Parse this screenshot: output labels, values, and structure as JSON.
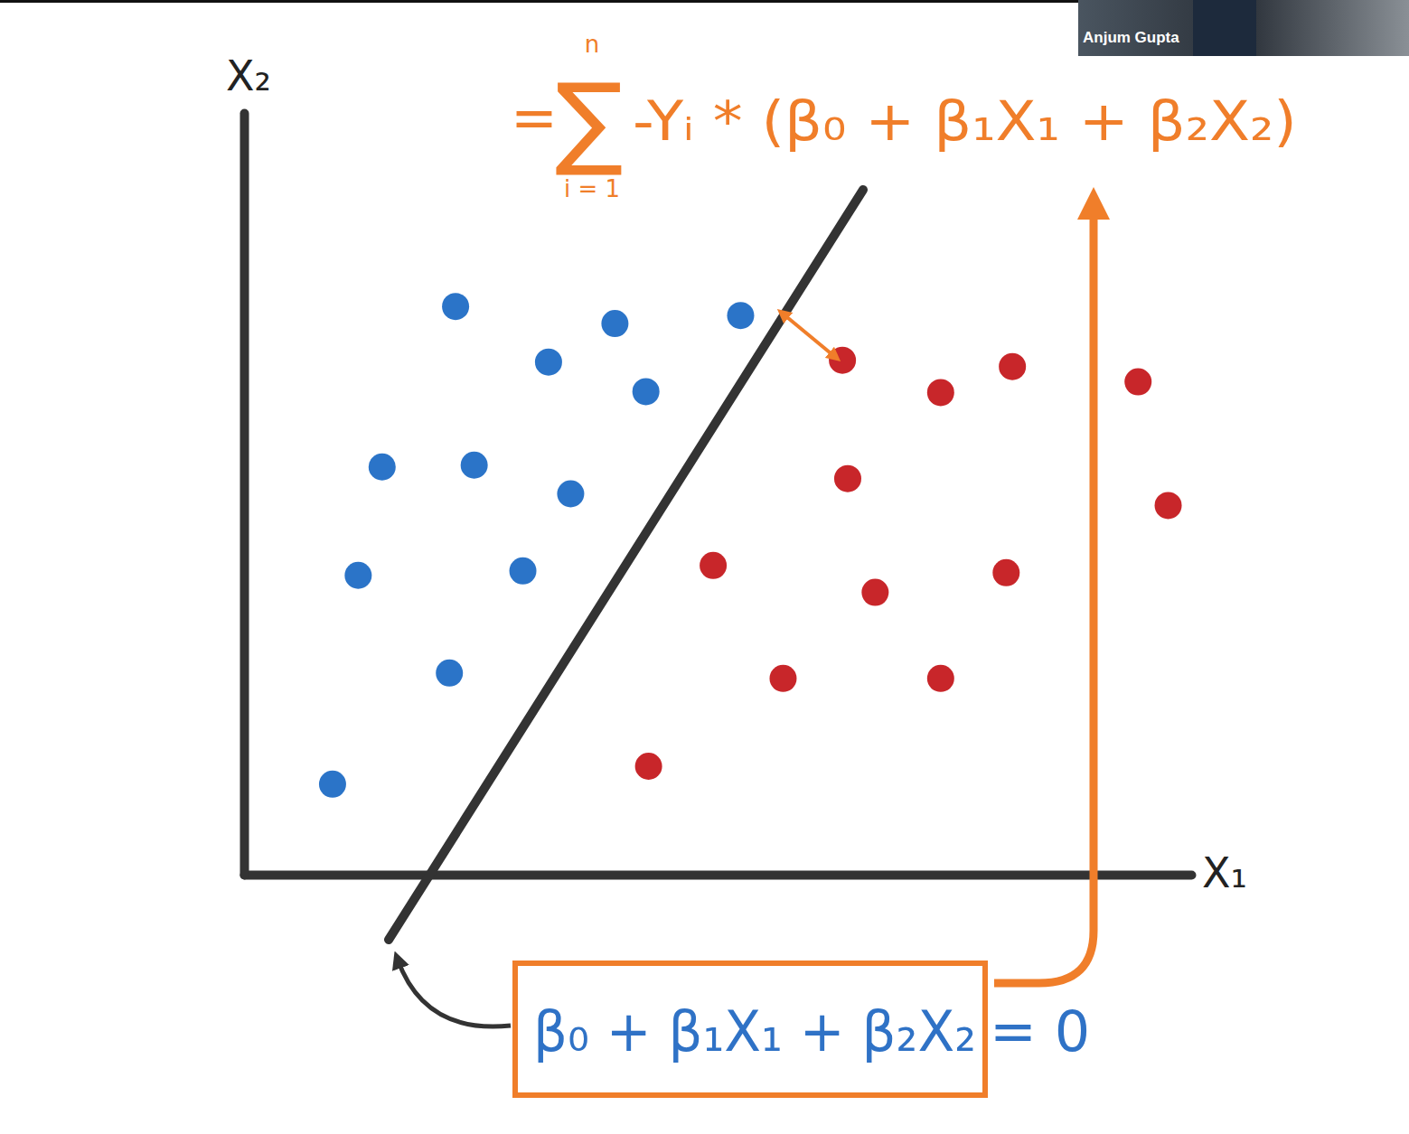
{
  "chart_data": {
    "type": "scatter",
    "x_label": "X₁",
    "y_label": "X₂",
    "xlim": [
      0,
      107
    ],
    "ylim": [
      0,
      85
    ],
    "tick_labels": false,
    "grid": false,
    "series": [
      {
        "color": "#2b74c8",
        "marker": "circle",
        "x": [
          23.9,
          41.9,
          56.1,
          34.4,
          45.4,
          15.6,
          26.0,
          36.9,
          12.9,
          31.5,
          23.2,
          10.0
        ],
        "values": [
          63.4,
          61.5,
          62.4,
          57.2,
          53.9,
          45.5,
          45.7,
          42.5,
          33.4,
          33.9,
          22.5,
          10.1
        ]
      },
      {
        "color": "#c8262a",
        "marker": "circle",
        "x": [
          67.6,
          86.8,
          78.7,
          101.0,
          68.2,
          104.4,
          53.0,
          71.3,
          86.1,
          60.9,
          78.7,
          45.7
        ],
        "values": [
          57.4,
          56.7,
          53.8,
          55.0,
          44.2,
          41.2,
          34.5,
          31.5,
          33.7,
          21.9,
          21.9,
          12.1
        ]
      }
    ],
    "annotations": [
      {
        "prefix": "=",
        "sum_symbol": "∑",
        "upper": "n",
        "lower": "i = 1",
        "text": "-Yᵢ * (β₀ + β₁X₁ + β₂X₂)"
      },
      {
        "lhs": "β₀ + β₁X₁ + β₂X₂",
        "rhs": "= 0"
      }
    ]
  },
  "video_overlay": {
    "name": "Anjum Gupta"
  }
}
